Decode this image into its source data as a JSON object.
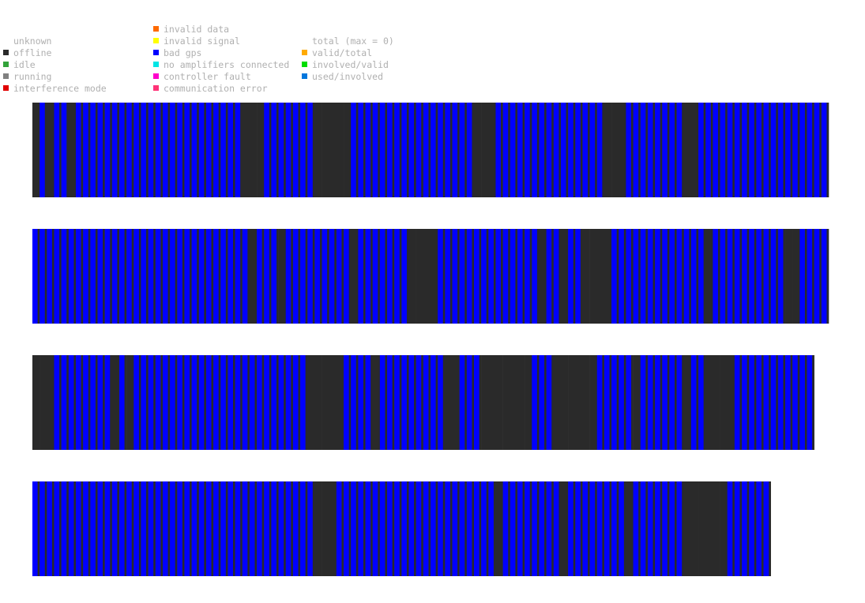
{
  "legend": {
    "columns": [
      [
        {
          "label": "unknown",
          "color": ""
        },
        {
          "label": "offline",
          "color": "#2a2a2a"
        },
        {
          "label": "idle",
          "color": "#33a33a"
        },
        {
          "label": "running",
          "color": "#808080"
        },
        {
          "label": "interference mode",
          "color": "#e00000"
        }
      ],
      [
        {
          "label": "invalid data",
          "color": "#ff6a00"
        },
        {
          "label": "invalid signal",
          "color": "#ffff00"
        },
        {
          "label": "bad gps",
          "color": "#0000ff"
        },
        {
          "label": "no amplifiers connected",
          "color": "#00e5e5"
        },
        {
          "label": "controller fault",
          "color": "#ff00cc"
        },
        {
          "label": "communication error",
          "color": "#ff3377"
        }
      ],
      [
        {
          "label": "total (max = 0)",
          "color": ""
        },
        {
          "label": "valid/total",
          "color": "#ffaa00"
        },
        {
          "label": "involved/valid",
          "color": "#00dd00"
        },
        {
          "label": "used/involved",
          "color": "#0077dd"
        }
      ]
    ]
  },
  "chart_data": {
    "type": "heatmap",
    "description_colors": {
      "offline": "#2a2a2a",
      "bad gps": "#0000ff"
    },
    "rows": [
      "oBoBBoBBBBBBBBBBBBBBBBBBBBBBBoooBBBBBBBoooooBBBBBBBBBBBBBBBBBoooBBBBBBBBBBBBBBBoooBBBBBBBBooBBBBBBBBBBBBBBBBBB",
      "BBBBBBBBBBBBBBBBBBBBBBBBBBBBBBoBBBoBBBBBBBBBoBBBBBBBooooBBBBBBBBBBBBBBoBBoBBooooBBBBBBBBBBBBBoBBBBBBBBBBooBBBB",
      "oooBBBBBBBBoBoBBBBBBBBBBBBBBBBBBBBBBBBoooooBBBBoBBBBBBBBBooBBBoooooooBBBooooooBBBBBoBBBBBBoBBooooBBBBBBBBBBB",
      "BBBBBBBBBBBBBBBBBBBBBBBBBBBBBBBBBBBBBBBoooBBBBBBBBBBBBBBBBBBBBBBoBBBBBBBBoBBBBBBBBoBBBBBBBooooooBBBBBB"
    ]
  }
}
